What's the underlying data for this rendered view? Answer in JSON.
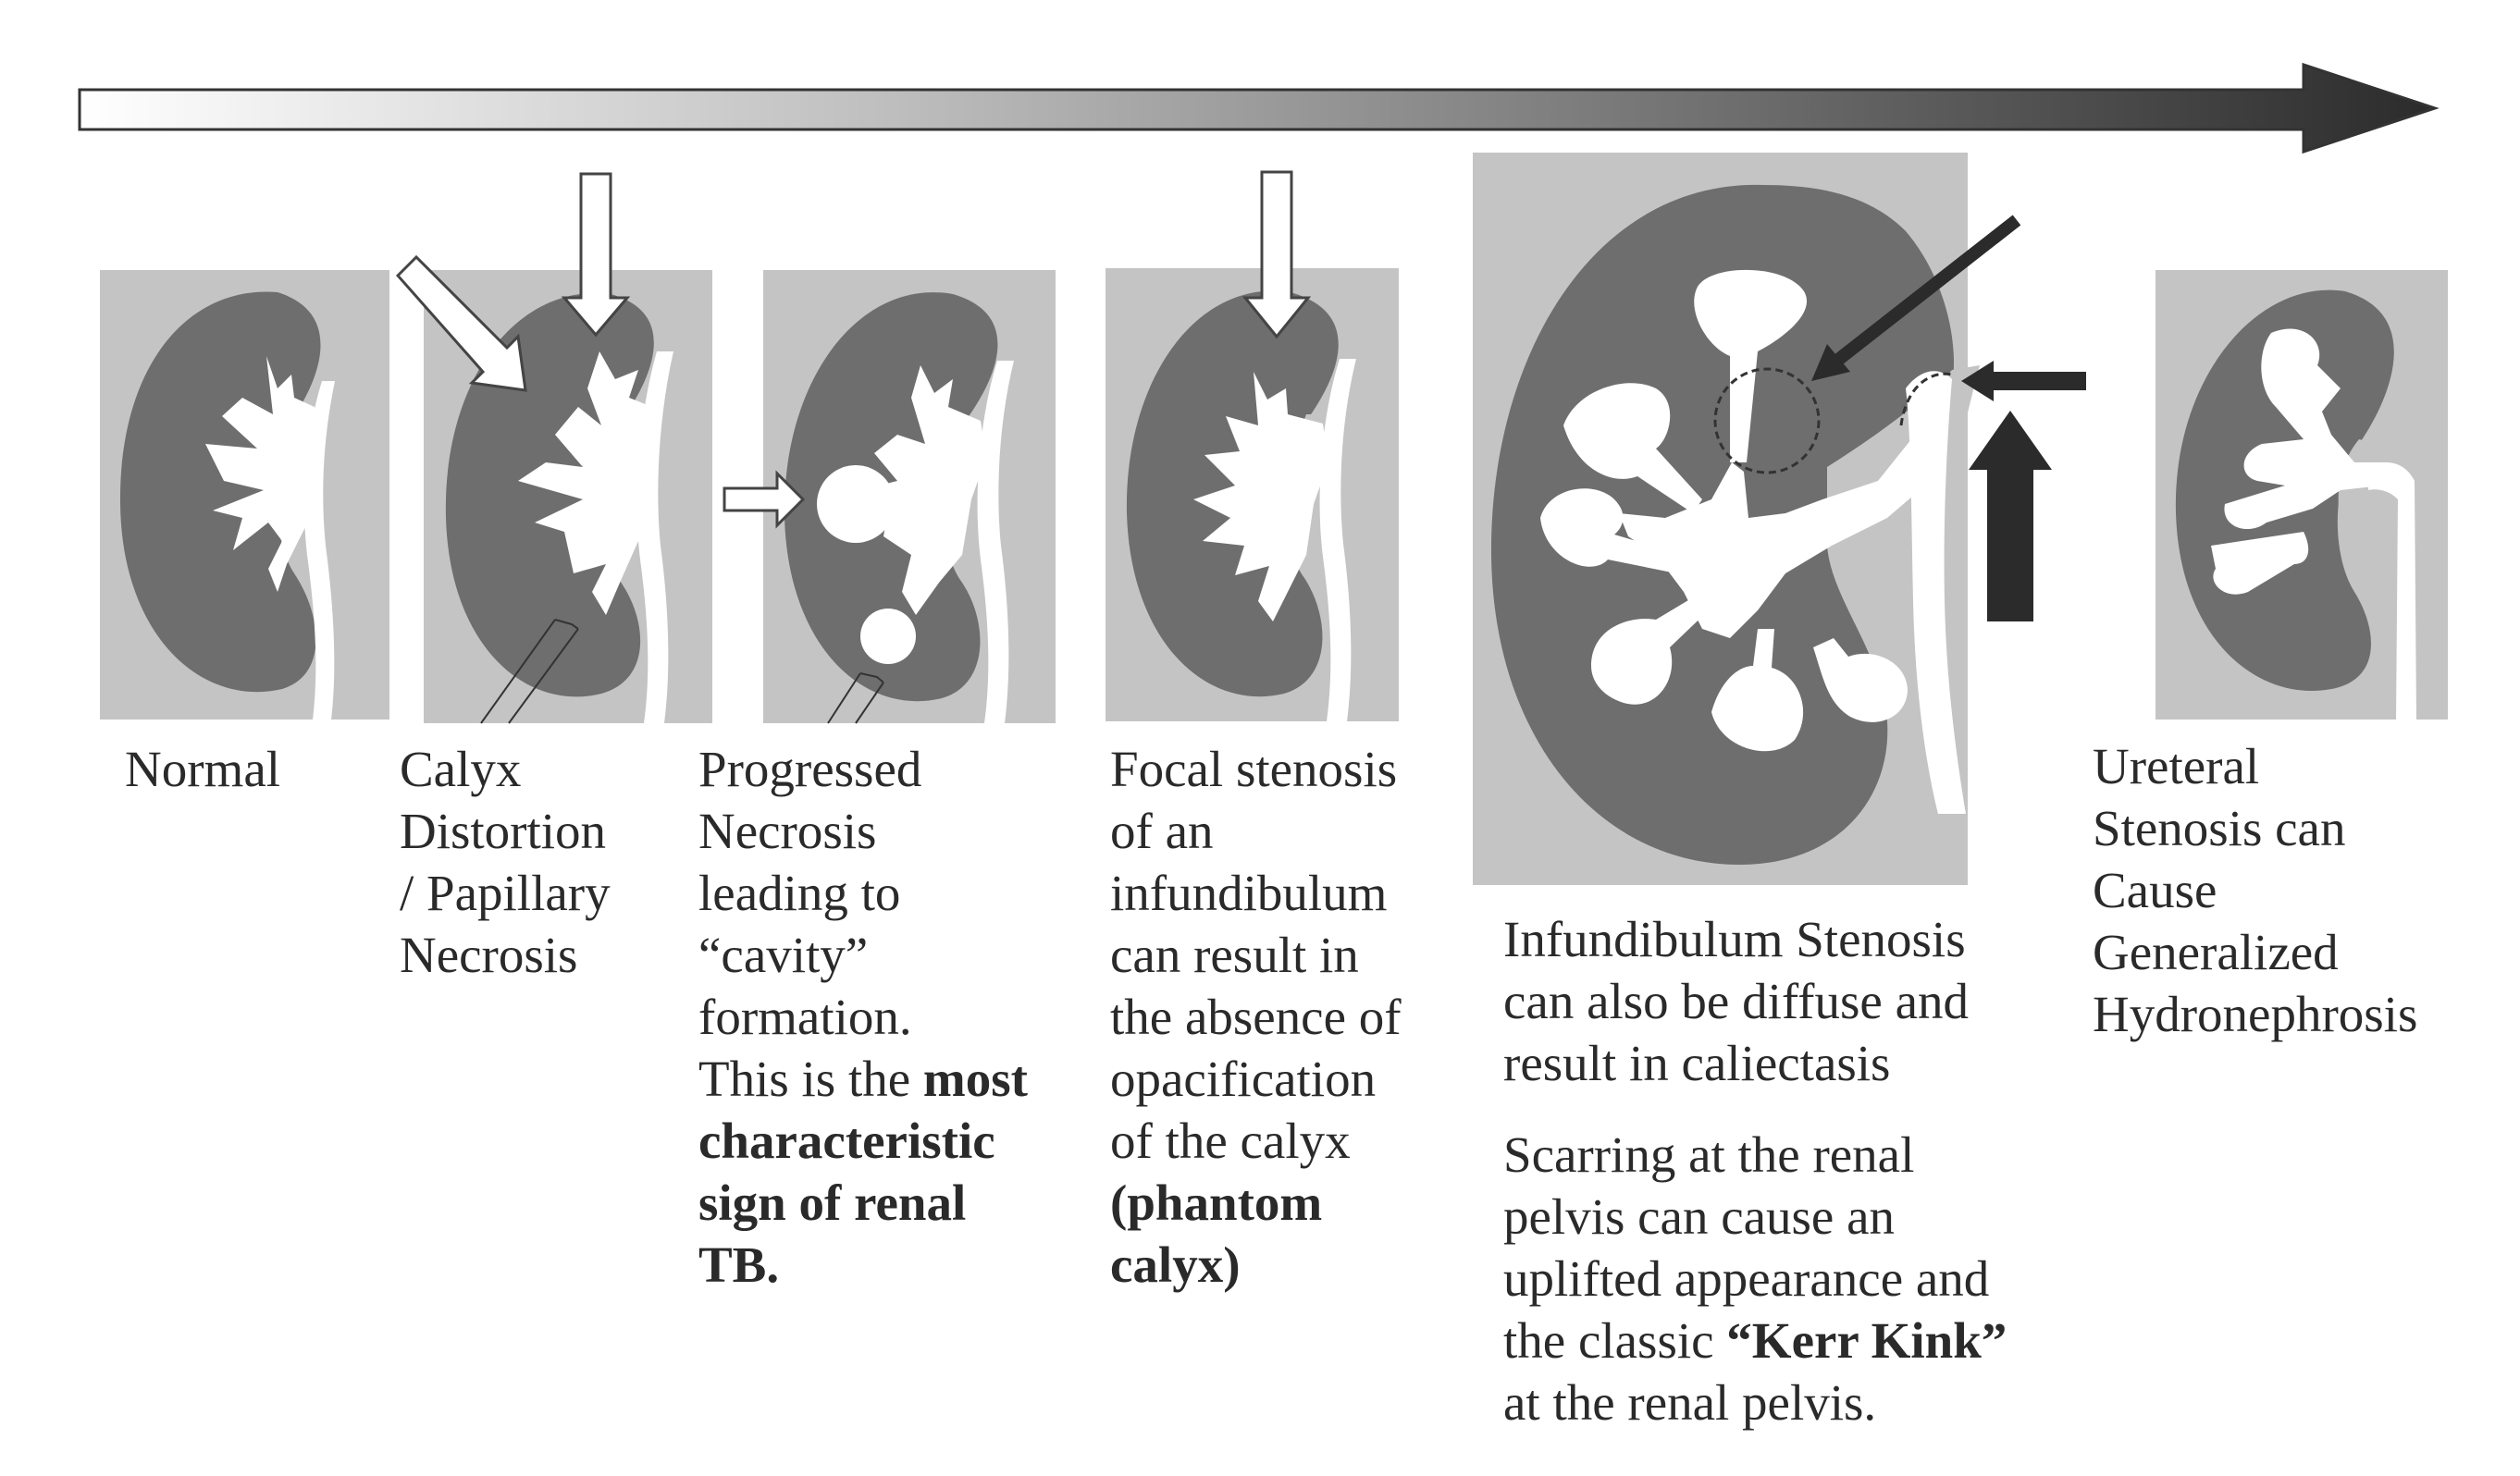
{
  "stages": [
    {
      "id": "normal",
      "lines": [
        "Normal"
      ]
    },
    {
      "id": "calyx-distortion",
      "lines": [
        "Calyx",
        "Distortion",
        "/ Papillary",
        "Necrosis"
      ]
    },
    {
      "id": "progressed-necrosis",
      "lines": [
        "Progressed",
        "Necrosis",
        "leading to",
        "“cavity”",
        "formation."
      ],
      "bold_intro": "This is the",
      "bold_lines": [
        "most",
        "characteristic",
        "sign of renal",
        "TB."
      ]
    },
    {
      "id": "focal-stenosis",
      "lines": [
        "Focal stenosis",
        "of an",
        "infundibulum",
        "can result in",
        "the absence of",
        "opacification",
        "of the calyx"
      ],
      "bold_lines": [
        "(phantom",
        "calyx)"
      ]
    },
    {
      "id": "diffuse-stenosis",
      "lines": [
        "Infundibulum Stenosis",
        "can also be diffuse and",
        "result in caliectasis"
      ],
      "lines2": [
        "Scarring at the renal",
        "pelvis can cause an",
        "uplifted appearance and"
      ],
      "kerr_pre": "the classic",
      "kerr_bold": "“Kerr Kink”",
      "kerr_post": "at the renal pelvis."
    },
    {
      "id": "ureteral-stenosis",
      "lines": [
        "Ureteral",
        "Stenosis can",
        "Cause",
        "Generalized",
        "Hydronephrosis"
      ]
    }
  ],
  "colors": {
    "panel": "#c4c4c4",
    "kidney": "#6e6e6e",
    "collecting": "#ffffff",
    "arrow_dark": "#2b2b2b"
  }
}
